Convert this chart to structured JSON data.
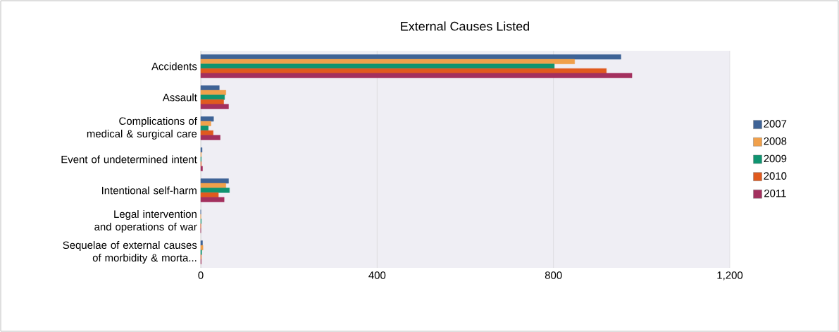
{
  "chart_data": {
    "type": "bar",
    "orientation": "horizontal",
    "title": "External Causes Listed",
    "categories": [
      "Accidents",
      "Assault",
      "Complications of medical & surgical care",
      "Event of undetermined intent",
      "Intentional self-harm",
      "Legal intervention and operations of war",
      "Sequelae of external causes of morbidity & morta..."
    ],
    "series": [
      {
        "name": "2007",
        "color": "#3e6396",
        "values": [
          953,
          42,
          29,
          3,
          63,
          0,
          4
        ]
      },
      {
        "name": "2008",
        "color": "#f0a04b",
        "values": [
          848,
          57,
          23,
          1,
          57,
          0,
          5
        ]
      },
      {
        "name": "2009",
        "color": "#0f9470",
        "values": [
          802,
          54,
          17,
          1,
          65,
          1,
          2
        ]
      },
      {
        "name": "2010",
        "color": "#e05a1e",
        "values": [
          920,
          52,
          28,
          1,
          40,
          0,
          1
        ]
      },
      {
        "name": "2011",
        "color": "#a3305e",
        "values": [
          978,
          63,
          44,
          4,
          53,
          0,
          1
        ]
      }
    ],
    "xlim": [
      0,
      1200
    ],
    "xticks": [
      0,
      400,
      800,
      {
        "value": 1200,
        "label": "1,200"
      }
    ],
    "grid": "x",
    "legend": "right"
  }
}
